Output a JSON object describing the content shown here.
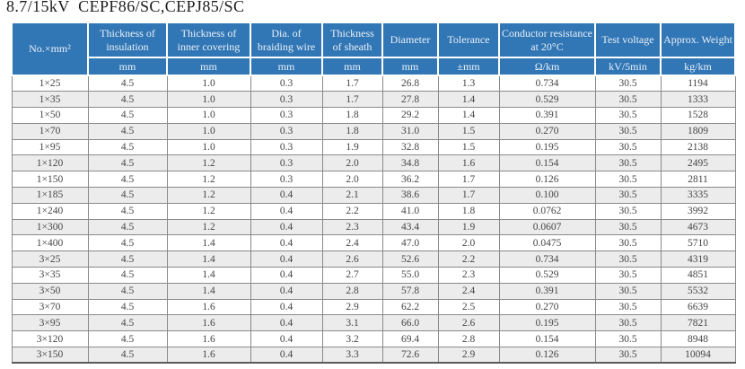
{
  "title": "8.7/15kV  CEPF86/SC,CEPJ85/SC",
  "colors": {
    "header_bg": "#3176b5",
    "header_text": "#eaf1f8",
    "row_bg": "#ffffff",
    "row_alt_bg": "#ececec",
    "grid_border": "#8a8a8a",
    "bottom_border": "#5a5a5a",
    "cell_text": "#454545",
    "title_text": "#1c1c1c"
  },
  "table": {
    "columns": [
      {
        "key": "size",
        "label": "No.×mm²",
        "unit": null
      },
      {
        "key": "insulation",
        "label": "Thickness of insulation",
        "unit": "mm"
      },
      {
        "key": "inner-covering",
        "label": "Thickness of inner covering",
        "unit": "mm"
      },
      {
        "key": "braiding-wire",
        "label": "Dia. of braiding wire",
        "unit": "mm"
      },
      {
        "key": "sheath",
        "label": "Thickness of sheath",
        "unit": "mm"
      },
      {
        "key": "diameter",
        "label": "Diameter",
        "unit": "mm"
      },
      {
        "key": "tolerance",
        "label": "Tolerance",
        "unit": "±mm"
      },
      {
        "key": "resistance",
        "label": "Conductor resistance at 20°C",
        "unit": "Ω/km"
      },
      {
        "key": "test-voltage",
        "label": "Test voltage",
        "unit": "kV/5min"
      },
      {
        "key": "weight",
        "label": "Approx. Weight",
        "unit": "kg/km"
      }
    ],
    "rows": [
      [
        "1×25",
        "4.5",
        "1.0",
        "0.3",
        "1.7",
        "26.8",
        "1.3",
        "0.734",
        "30.5",
        "1194"
      ],
      [
        "1×35",
        "4.5",
        "1.0",
        "0.3",
        "1.7",
        "27.8",
        "1.4",
        "0.529",
        "30.5",
        "1333"
      ],
      [
        "1×50",
        "4.5",
        "1.0",
        "0.3",
        "1.8",
        "29.2",
        "1.4",
        "0.391",
        "30.5",
        "1528"
      ],
      [
        "1×70",
        "4.5",
        "1.0",
        "0.3",
        "1.8",
        "31.0",
        "1.5",
        "0.270",
        "30.5",
        "1809"
      ],
      [
        "1×95",
        "4.5",
        "1.0",
        "0.3",
        "1.9",
        "32.8",
        "1.5",
        "0.195",
        "30.5",
        "2138"
      ],
      [
        "1×120",
        "4.5",
        "1.2",
        "0.3",
        "2.0",
        "34.8",
        "1.6",
        "0.154",
        "30.5",
        "2495"
      ],
      [
        "1×150",
        "4.5",
        "1.2",
        "0.3",
        "2.0",
        "36.2",
        "1.7",
        "0.126",
        "30.5",
        "2811"
      ],
      [
        "1×185",
        "4.5",
        "1.2",
        "0.4",
        "2.1",
        "38.6",
        "1.7",
        "0.100",
        "30.5",
        "3335"
      ],
      [
        "1×240",
        "4.5",
        "1.2",
        "0.4",
        "2.2",
        "41.0",
        "1.8",
        "0.0762",
        "30.5",
        "3992"
      ],
      [
        "1×300",
        "4.5",
        "1.2",
        "0.4",
        "2.3",
        "43.4",
        "1.9",
        "0.0607",
        "30.5",
        "4673"
      ],
      [
        "1×400",
        "4.5",
        "1.4",
        "0.4",
        "2.4",
        "47.0",
        "2.0",
        "0.0475",
        "30.5",
        "5710"
      ],
      [
        "3×25",
        "4.5",
        "1.4",
        "0.4",
        "2.6",
        "52.6",
        "2.2",
        "0.734",
        "30.5",
        "4319"
      ],
      [
        "3×35",
        "4.5",
        "1.4",
        "0.4",
        "2.7",
        "55.0",
        "2.3",
        "0.529",
        "30.5",
        "4851"
      ],
      [
        "3×50",
        "4.5",
        "1.4",
        "0.4",
        "2.8",
        "57.8",
        "2.4",
        "0.391",
        "30.5",
        "5532"
      ],
      [
        "3×70",
        "4.5",
        "1.6",
        "0.4",
        "2.9",
        "62.2",
        "2.5",
        "0.270",
        "30.5",
        "6639"
      ],
      [
        "3×95",
        "4.5",
        "1.6",
        "0.4",
        "3.1",
        "66.0",
        "2.6",
        "0.195",
        "30.5",
        "7821"
      ],
      [
        "3×120",
        "4.5",
        "1.6",
        "0.4",
        "3.2",
        "69.4",
        "2.8",
        "0.154",
        "30.5",
        "8948"
      ],
      [
        "3×150",
        "4.5",
        "1.6",
        "0.4",
        "3.3",
        "72.6",
        "2.9",
        "0.126",
        "30.5",
        "10094"
      ]
    ]
  }
}
